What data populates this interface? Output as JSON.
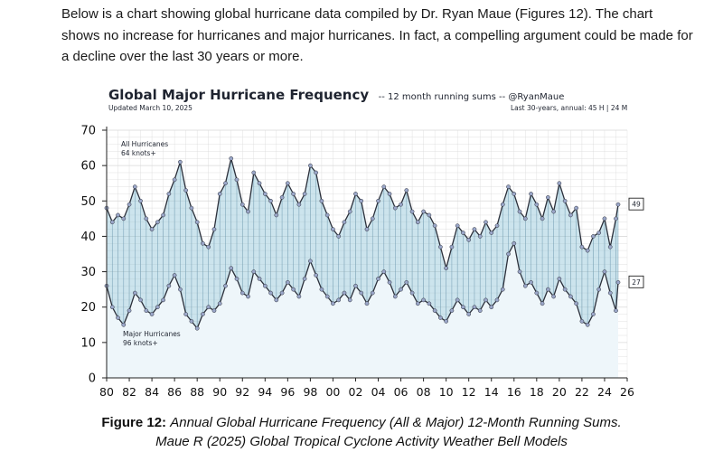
{
  "intro_text": "Below is a chart showing global hurricane data compiled by Dr. Ryan Maue (Figures 12). The chart shows no increase for hurricanes and major hurricanes. In fact, a compelling argument could be made for a decline over the last 30 years or more.",
  "caption": {
    "label": "Figure 12:",
    "line1": "Annual Global Hurricane Frequency (All & Major) 12-Month Running Sums.",
    "line2": "Maue R (2025) Global Tropical Cyclone Activity Weather Bell Models"
  },
  "chart_data": {
    "type": "line",
    "title": "Global Major Hurricane Frequency",
    "subtitle": "-- 12 month running sums -- @RyanMaue",
    "updated": "Updated March 10, 2025",
    "annual_note": "Last 30-years, annual:  45 H | 24 M",
    "ylim": [
      0,
      70
    ],
    "yticks": [
      "0",
      "10",
      "20",
      "30",
      "40",
      "50",
      "60",
      "70"
    ],
    "xlim": [
      1980,
      2026
    ],
    "xticks": [
      "80",
      "82",
      "84",
      "86",
      "88",
      "90",
      "92",
      "94",
      "96",
      "98",
      "00",
      "02",
      "04",
      "06",
      "08",
      "10",
      "12",
      "14",
      "16",
      "18",
      "20",
      "22",
      "24",
      "26"
    ],
    "colors": {
      "line": "#2b2f3a",
      "marker": "#9aa6c8",
      "fill": "#8fc3d8",
      "grid": "#d9d9d9"
    },
    "end_labels": [
      "49",
      "27"
    ],
    "series": [
      {
        "name": "All Hurricanes",
        "label_lines": [
          "All Hurricanes",
          "64 knots+"
        ],
        "x": [
          1980.0,
          1980.5,
          1981.0,
          1981.5,
          1982.0,
          1982.5,
          1983.0,
          1983.5,
          1984.0,
          1984.5,
          1985.0,
          1985.5,
          1986.0,
          1986.5,
          1987.0,
          1987.5,
          1988.0,
          1988.5,
          1989.0,
          1989.5,
          1990.0,
          1990.5,
          1991.0,
          1991.5,
          1992.0,
          1992.5,
          1993.0,
          1993.5,
          1994.0,
          1994.5,
          1995.0,
          1995.5,
          1996.0,
          1996.5,
          1997.0,
          1997.5,
          1998.0,
          1998.5,
          1999.0,
          1999.5,
          2000.0,
          2000.5,
          2001.0,
          2001.5,
          2002.0,
          2002.5,
          2003.0,
          2003.5,
          2004.0,
          2004.5,
          2005.0,
          2005.5,
          2006.0,
          2006.5,
          2007.0,
          2007.5,
          2008.0,
          2008.5,
          2009.0,
          2009.5,
          2010.0,
          2010.5,
          2011.0,
          2011.5,
          2012.0,
          2012.5,
          2013.0,
          2013.5,
          2014.0,
          2014.5,
          2015.0,
          2015.5,
          2016.0,
          2016.5,
          2017.0,
          2017.5,
          2018.0,
          2018.5,
          2019.0,
          2019.5,
          2020.0,
          2020.5,
          2021.0,
          2021.5,
          2022.0,
          2022.5,
          2023.0,
          2023.5,
          2024.0,
          2024.5,
          2025.0,
          2025.2
        ],
        "y": [
          48,
          44,
          46,
          45,
          49,
          54,
          50,
          45,
          42,
          44,
          46,
          52,
          56,
          61,
          53,
          48,
          44,
          38,
          37,
          42,
          52,
          55,
          62,
          56,
          49,
          47,
          58,
          55,
          52,
          50,
          46,
          51,
          55,
          52,
          49,
          52,
          60,
          58,
          50,
          46,
          42,
          40,
          44,
          47,
          52,
          50,
          42,
          45,
          50,
          54,
          52,
          48,
          49,
          53,
          47,
          44,
          47,
          46,
          43,
          37,
          31,
          37,
          43,
          41,
          39,
          42,
          40,
          44,
          41,
          43,
          49,
          54,
          52,
          47,
          45,
          52,
          49,
          45,
          51,
          47,
          55,
          50,
          46,
          48,
          37,
          36,
          40,
          41,
          45,
          37,
          45,
          49
        ]
      },
      {
        "name": "Major Hurricanes",
        "label_lines": [
          "Major Hurricanes",
          "96 knots+"
        ],
        "x": [
          1980.0,
          1980.5,
          1981.0,
          1981.5,
          1982.0,
          1982.5,
          1983.0,
          1983.5,
          1984.0,
          1984.5,
          1985.0,
          1985.5,
          1986.0,
          1986.5,
          1987.0,
          1987.5,
          1988.0,
          1988.5,
          1989.0,
          1989.5,
          1990.0,
          1990.5,
          1991.0,
          1991.5,
          1992.0,
          1992.5,
          1993.0,
          1993.5,
          1994.0,
          1994.5,
          1995.0,
          1995.5,
          1996.0,
          1996.5,
          1997.0,
          1997.5,
          1998.0,
          1998.5,
          1999.0,
          1999.5,
          2000.0,
          2000.5,
          2001.0,
          2001.5,
          2002.0,
          2002.5,
          2003.0,
          2003.5,
          2004.0,
          2004.5,
          2005.0,
          2005.5,
          2006.0,
          2006.5,
          2007.0,
          2007.5,
          2008.0,
          2008.5,
          2009.0,
          2009.5,
          2010.0,
          2010.5,
          2011.0,
          2011.5,
          2012.0,
          2012.5,
          2013.0,
          2013.5,
          2014.0,
          2014.5,
          2015.0,
          2015.5,
          2016.0,
          2016.5,
          2017.0,
          2017.5,
          2018.0,
          2018.5,
          2019.0,
          2019.5,
          2020.0,
          2020.5,
          2021.0,
          2021.5,
          2022.0,
          2022.5,
          2023.0,
          2023.5,
          2024.0,
          2024.5,
          2025.0,
          2025.2
        ],
        "y": [
          26,
          20,
          17,
          15,
          19,
          24,
          22,
          19,
          18,
          20,
          22,
          26,
          29,
          25,
          18,
          16,
          14,
          18,
          20,
          19,
          21,
          26,
          31,
          28,
          24,
          23,
          30,
          28,
          26,
          24,
          22,
          24,
          27,
          25,
          23,
          28,
          33,
          29,
          25,
          23,
          21,
          22,
          24,
          22,
          26,
          24,
          21,
          24,
          28,
          30,
          27,
          23,
          25,
          27,
          24,
          21,
          22,
          21,
          19,
          17,
          16,
          19,
          22,
          20,
          18,
          20,
          19,
          22,
          20,
          22,
          25,
          35,
          38,
          30,
          26,
          27,
          24,
          21,
          25,
          23,
          28,
          25,
          23,
          21,
          16,
          15,
          18,
          25,
          30,
          24,
          19,
          27
        ]
      }
    ]
  }
}
